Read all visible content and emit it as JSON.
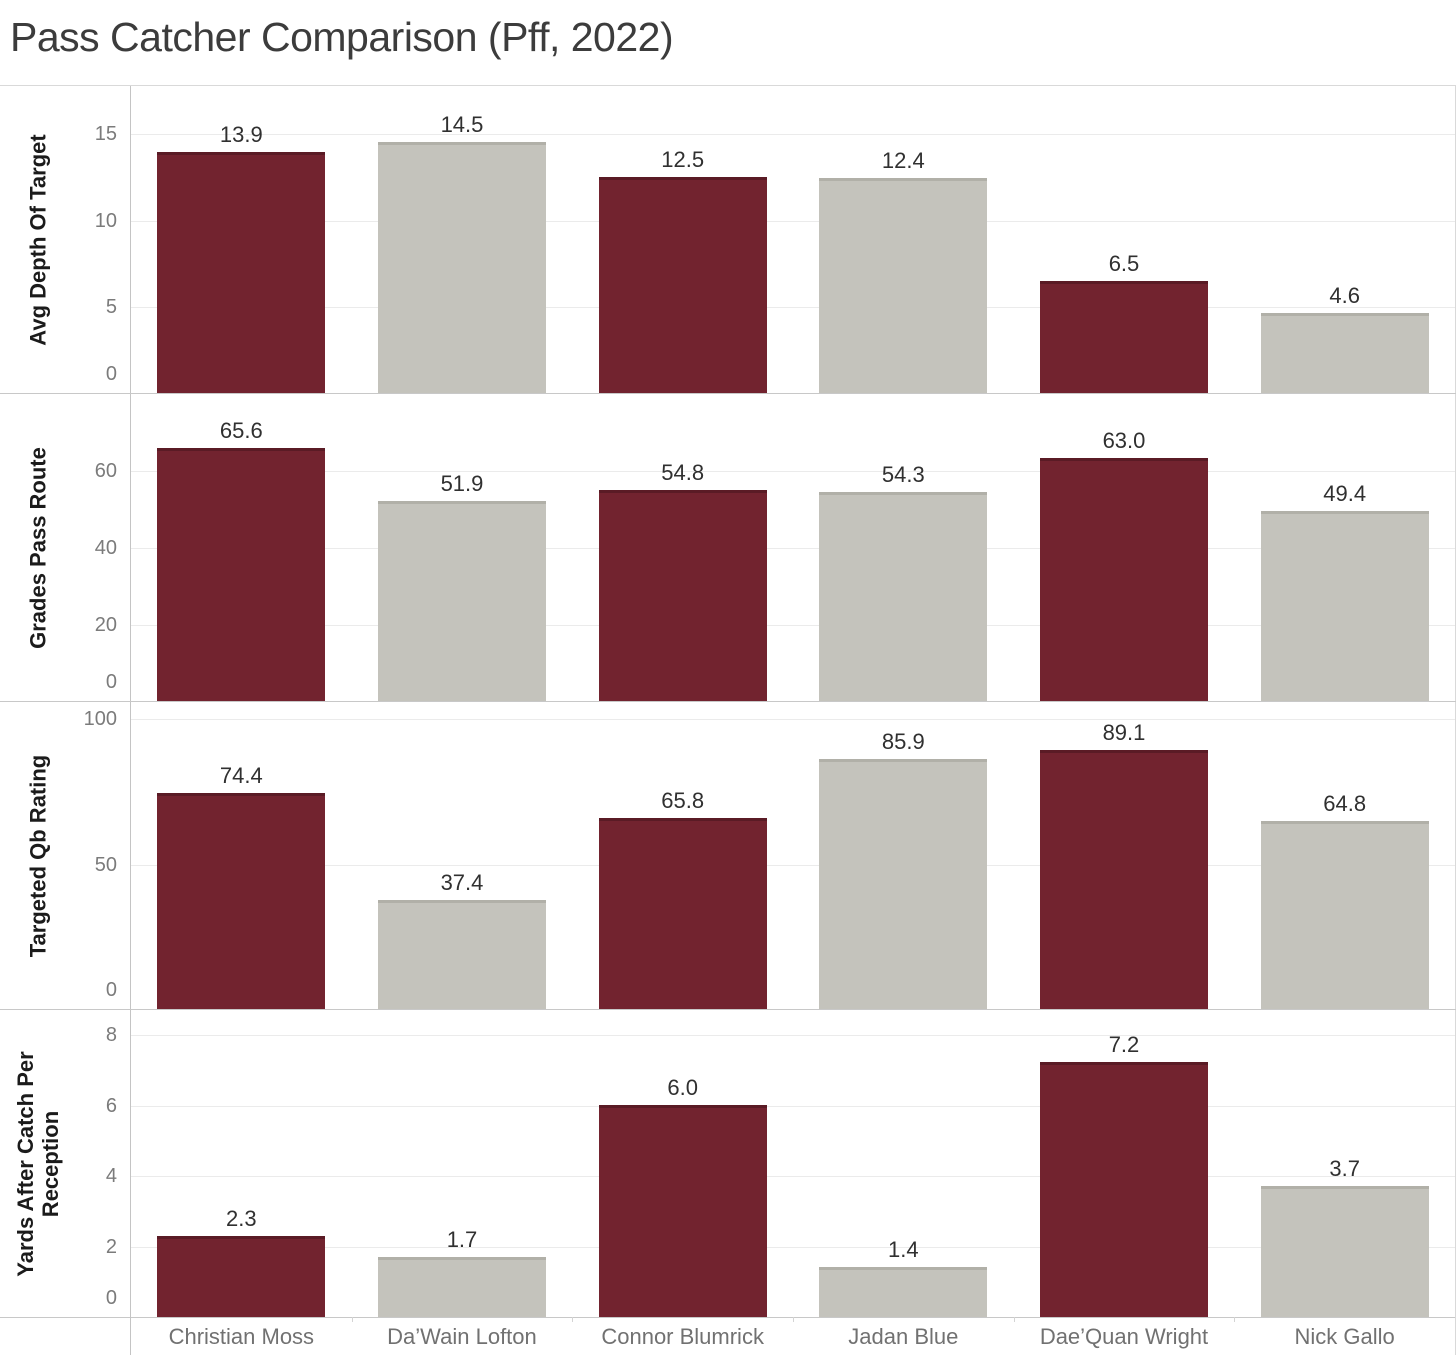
{
  "header": {
    "title": "Pass Catcher Comparison (Pff, 2022)"
  },
  "colors": {
    "maroon": "#72232f",
    "maroon_border": "#5a1b25",
    "gray": "#c4c3bc",
    "gray_border": "#b1b0a8",
    "gridline": "#ebebeb",
    "divider": "#c8c8c8",
    "axis_line": "#c4c4c4",
    "tick_label": "#7b7b7b",
    "value_label": "#303030",
    "axis_title": "#1b1b1b",
    "category_label": "#717171",
    "title_color": "#3c3c3c"
  },
  "chart_data": {
    "type": "bar",
    "title": "Pass Catcher Comparison (Pff, 2022)",
    "grid": true,
    "legend": false,
    "categories": [
      "Christian Moss",
      "Da’Wain Lofton",
      "Connor Blumrick",
      "Jadan Blue",
      "Dae’Quan Wright",
      "Nick Gallo"
    ],
    "bar_color_pattern": [
      "maroon",
      "gray",
      "maroon",
      "gray",
      "maroon",
      "gray"
    ],
    "value_decimals": 1,
    "panels": [
      {
        "ylabel": "Avg Depth Of Target",
        "values": [
          13.9,
          14.5,
          12.5,
          12.4,
          6.5,
          4.6
        ],
        "ticks": [
          0,
          5,
          10,
          15
        ],
        "ylim": [
          0,
          17.8
        ]
      },
      {
        "ylabel": "Grades Pass Route",
        "values": [
          65.6,
          51.9,
          54.8,
          54.3,
          63.0,
          49.4
        ],
        "ticks": [
          0,
          20,
          40,
          60
        ],
        "ylim": [
          0,
          80
        ]
      },
      {
        "ylabel": "Targeted Qb Rating",
        "values": [
          74.4,
          37.4,
          65.8,
          85.9,
          89.1,
          64.8
        ],
        "ticks": [
          0,
          50,
          100
        ],
        "ylim": [
          0,
          106
        ]
      },
      {
        "ylabel": "Yards After Catch Per Reception",
        "values": [
          2.3,
          1.7,
          6.0,
          1.4,
          7.2,
          3.7
        ],
        "ticks": [
          0,
          2,
          4,
          6,
          8
        ],
        "ylim": [
          0,
          8.7
        ]
      }
    ]
  }
}
